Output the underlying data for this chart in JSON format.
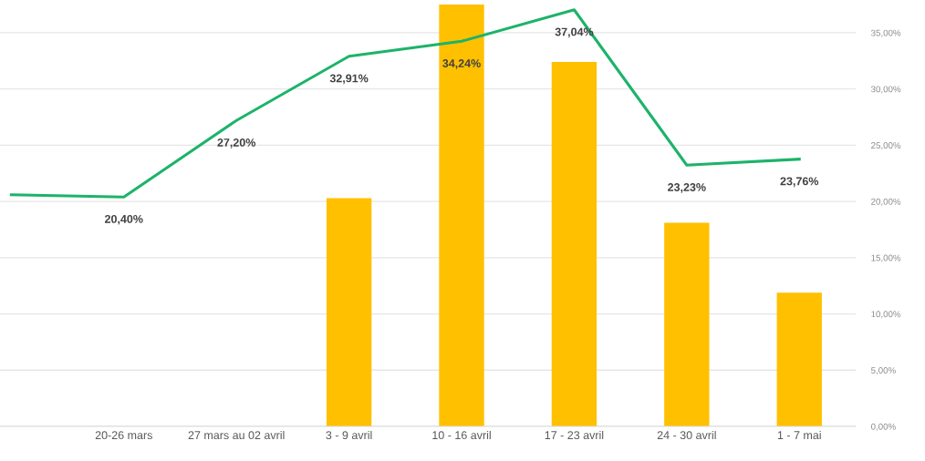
{
  "chart_data": {
    "type": "bar",
    "categories": [
      null,
      "20-26 mars",
      "27 mars au 02 avril",
      "3 - 9 avril",
      "10 - 16 avril",
      "17 - 23 avril",
      "24 - 30 avril",
      "1 - 7 mai"
    ],
    "series": [
      {
        "color": "#ffc000",
        "values": [
          null,
          null,
          null,
          20.3,
          37.5,
          32.4,
          18.1,
          11.9
        ]
      },
      {
        "type": "line",
        "color": "#1db36a",
        "values": [
          20.6,
          20.4,
          27.2,
          32.91,
          34.24,
          37.04,
          23.23,
          23.76
        ],
        "value_labels": [
          null,
          "20,40%",
          "27,20%",
          "32,91%",
          "34,24%",
          "37,04%",
          "23,23%",
          "23,76%"
        ]
      }
    ],
    "ylim": [
      0,
      37.5
    ],
    "yticks": [
      {
        "value": 0,
        "label": "0,00%"
      },
      {
        "value": 5,
        "label": "5,00%"
      },
      {
        "value": 10,
        "label": "10,00%"
      },
      {
        "value": 15,
        "label": "15,00%"
      },
      {
        "value": 20,
        "label": "20,00%"
      },
      {
        "value": 25,
        "label": "25,00%"
      },
      {
        "value": 30,
        "label": "30,00%"
      },
      {
        "value": 35,
        "label": "35,00%"
      }
    ],
    "grid": "y",
    "marker": "none",
    "line_style": "solid"
  }
}
